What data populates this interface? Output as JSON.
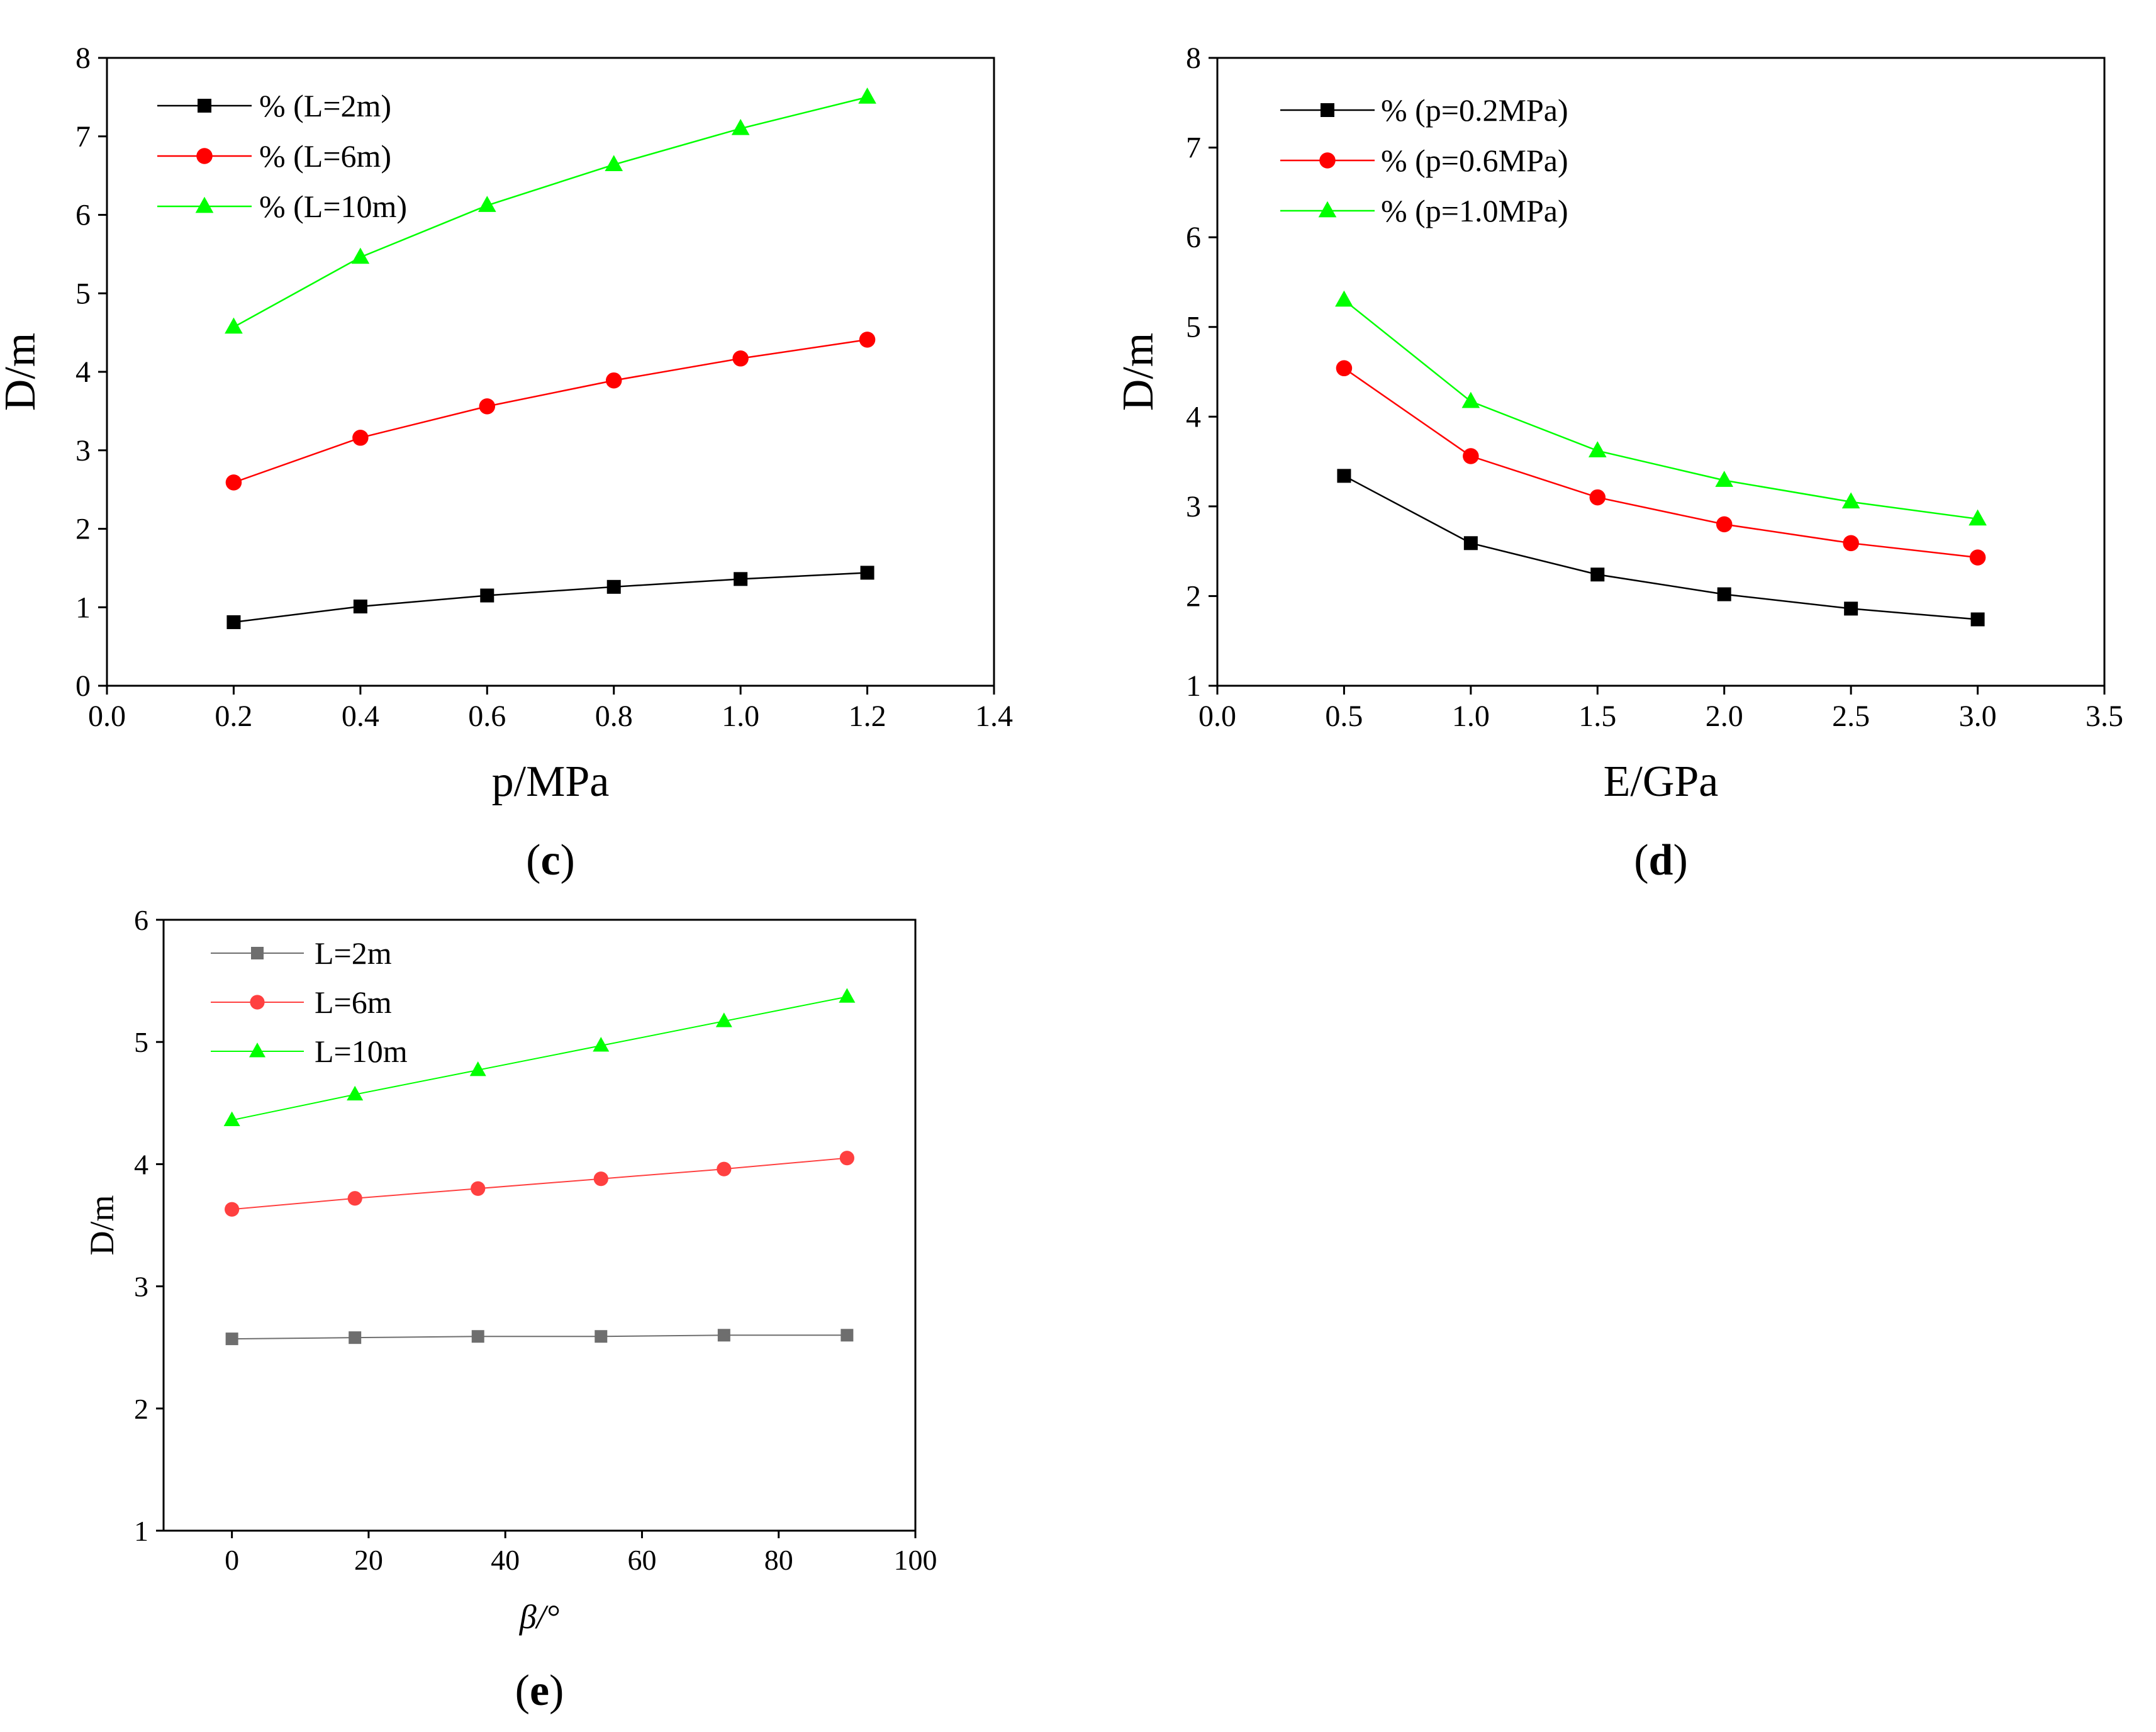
{
  "colors": {
    "black": "#000000",
    "red": "#ff0000",
    "green": "#00ff00",
    "gray": "#6e6e6e",
    "light_red": "#ff4040"
  },
  "chart_data": [
    {
      "panel": "(c)",
      "panel_letter": "c",
      "type": "line",
      "xlabel": "p/MPa",
      "ylabel": "D/m",
      "xlim": [
        0.0,
        1.4
      ],
      "ylim": [
        0,
        8
      ],
      "xticks": [
        "0.0",
        "0.2",
        "0.4",
        "0.6",
        "0.8",
        "1.0",
        "1.2",
        "1.4"
      ],
      "yticks": [
        "0",
        "1",
        "2",
        "3",
        "4",
        "5",
        "6",
        "7",
        "8"
      ],
      "legend_position": "top-left",
      "x": [
        0.2,
        0.4,
        0.6,
        0.8,
        1.0,
        1.2
      ],
      "series": [
        {
          "name": "% (L=2m)",
          "color": "#000000",
          "marker": "square",
          "values": [
            0.81,
            1.01,
            1.15,
            1.26,
            1.36,
            1.44
          ]
        },
        {
          "name": "% (L=6m)",
          "color": "#ff0000",
          "marker": "circle",
          "values": [
            2.59,
            3.16,
            3.56,
            3.89,
            4.17,
            4.41
          ]
        },
        {
          "name": "% (L=10m)",
          "color": "#00ff00",
          "marker": "triangle",
          "values": [
            4.57,
            5.46,
            6.12,
            6.64,
            7.1,
            7.5
          ]
        }
      ]
    },
    {
      "panel": "(d)",
      "panel_letter": "d",
      "type": "line",
      "xlabel": "E/GPa",
      "ylabel": "D/m",
      "xlim": [
        0.0,
        3.5
      ],
      "ylim": [
        1,
        8
      ],
      "xticks": [
        "0.0",
        "0.5",
        "1.0",
        "1.5",
        "2.0",
        "2.5",
        "3.0",
        "3.5"
      ],
      "yticks": [
        "1",
        "2",
        "3",
        "4",
        "5",
        "6",
        "7",
        "8"
      ],
      "legend_position": "top-left",
      "x": [
        0.5,
        1.0,
        1.5,
        2.0,
        2.5,
        3.0
      ],
      "series": [
        {
          "name": "% (p=0.2MPa)",
          "color": "#000000",
          "marker": "square",
          "values": [
            3.34,
            2.59,
            2.24,
            2.02,
            1.86,
            1.74
          ]
        },
        {
          "name": "% (p=0.6MPa)",
          "color": "#ff0000",
          "marker": "circle",
          "values": [
            4.54,
            3.56,
            3.1,
            2.8,
            2.59,
            2.43
          ]
        },
        {
          "name": "% (p=1.0MPa)",
          "color": "#00ff00",
          "marker": "triangle",
          "values": [
            5.3,
            4.17,
            3.62,
            3.29,
            3.05,
            2.86
          ]
        }
      ]
    },
    {
      "panel": "(e)",
      "panel_letter": "e",
      "type": "line",
      "xlabel": "β/°",
      "ylabel": "D/m",
      "xlim": [
        -10,
        100
      ],
      "ylim": [
        1,
        6
      ],
      "xticks": [
        "0",
        "20",
        "40",
        "60",
        "80",
        "100"
      ],
      "xtick_values": [
        0,
        20,
        40,
        60,
        80,
        100
      ],
      "yticks": [
        "1",
        "2",
        "3",
        "4",
        "5",
        "6"
      ],
      "legend_position": "top-left",
      "x": [
        0,
        18,
        36,
        54,
        72,
        90
      ],
      "series": [
        {
          "name": "L=2m",
          "color": "#6e6e6e",
          "marker": "square",
          "values": [
            2.57,
            2.58,
            2.59,
            2.59,
            2.6,
            2.6
          ]
        },
        {
          "name": "L=6m",
          "color": "#ff4040",
          "marker": "circle",
          "values": [
            3.63,
            3.72,
            3.8,
            3.88,
            3.96,
            4.05
          ]
        },
        {
          "name": "L=10m",
          "color": "#00ff00",
          "marker": "triangle",
          "values": [
            4.36,
            4.57,
            4.77,
            4.97,
            5.17,
            5.37
          ]
        }
      ]
    }
  ]
}
